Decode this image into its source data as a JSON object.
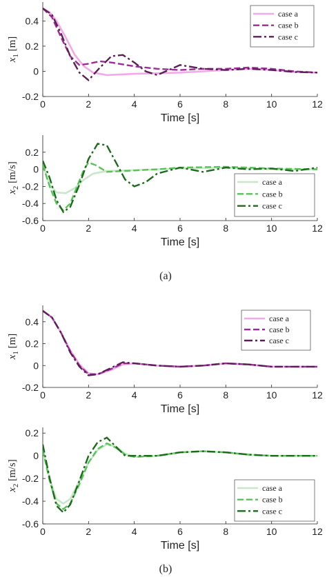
{
  "colors": {
    "x1_case_a": "#f2a9e8",
    "x1_case_b": "#9b2a9b",
    "x1_case_c": "#5a1f54",
    "x2_case_a": "#c9e6c9",
    "x2_case_b": "#55c455",
    "x2_case_c": "#1b6b1b"
  },
  "panels": {
    "a": {
      "caption": "(a)"
    },
    "b": {
      "caption": "(b)"
    }
  },
  "chart_data": [
    {
      "id": "a_x1",
      "type": "line",
      "title": "",
      "xlabel": "Time [s]",
      "ylabel": "x_1 [m]",
      "ylabel_main": "x",
      "ylabel_sub": "1",
      "ylabel_unit": " [m]",
      "xlim": [
        0,
        12
      ],
      "ylim": [
        -0.2,
        0.55
      ],
      "xticks": [
        "0",
        "2",
        "4",
        "6",
        "8",
        "10",
        "12"
      ],
      "xtick_values": [
        0,
        2,
        4,
        6,
        8,
        10,
        12
      ],
      "yticks": [
        "-0.2",
        "0",
        "0.2",
        "0.4"
      ],
      "ytick_values": [
        -0.2,
        0,
        0.2,
        0.4
      ],
      "grid": false,
      "legend": "top-right",
      "series": [
        {
          "name": "case a",
          "style": "solid",
          "color": "#f2a9e8",
          "points": [
            [
              0,
              0.5
            ],
            [
              0.3,
              0.47
            ],
            [
              0.6,
              0.4
            ],
            [
              1.0,
              0.27
            ],
            [
              1.4,
              0.13
            ],
            [
              1.8,
              0.04
            ],
            [
              2.2,
              -0.01
            ],
            [
              2.8,
              -0.03
            ],
            [
              4,
              -0.02
            ],
            [
              5,
              -0.015
            ],
            [
              6,
              -0.01
            ],
            [
              7,
              0
            ],
            [
              8,
              0.01
            ],
            [
              9,
              0.02
            ],
            [
              10,
              0.01
            ],
            [
              11,
              -0.005
            ],
            [
              12,
              -0.01
            ]
          ]
        },
        {
          "name": "case b",
          "style": "dash",
          "color": "#9b2a9b",
          "points": [
            [
              0,
              0.5
            ],
            [
              0.4,
              0.43
            ],
            [
              0.8,
              0.27
            ],
            [
              1.2,
              0.12
            ],
            [
              1.6,
              0.05
            ],
            [
              2.0,
              0.06
            ],
            [
              2.5,
              0.08
            ],
            [
              3.0,
              0.07
            ],
            [
              4,
              0.04
            ],
            [
              5,
              0.02
            ],
            [
              6,
              0.01
            ],
            [
              7,
              0.02
            ],
            [
              8,
              0.02
            ],
            [
              9,
              0.03
            ],
            [
              10,
              0.02
            ],
            [
              11,
              0
            ],
            [
              12,
              -0.01
            ]
          ]
        },
        {
          "name": "case c",
          "style": "dashdot",
          "color": "#5a1f54",
          "points": [
            [
              0,
              0.5
            ],
            [
              0.4,
              0.45
            ],
            [
              0.8,
              0.3
            ],
            [
              1.2,
              0.12
            ],
            [
              1.6,
              -0.01
            ],
            [
              2.0,
              -0.07
            ],
            [
              2.5,
              0.03
            ],
            [
              3.0,
              0.12
            ],
            [
              3.5,
              0.13
            ],
            [
              4.0,
              0.07
            ],
            [
              4.5,
              0.0
            ],
            [
              5.0,
              -0.03
            ],
            [
              6.0,
              0.05
            ],
            [
              7.0,
              0.02
            ],
            [
              8.0,
              0.01
            ],
            [
              9.0,
              0.02
            ],
            [
              10,
              0.01
            ],
            [
              11,
              -0.005
            ],
            [
              12,
              -0.01
            ]
          ]
        }
      ]
    },
    {
      "id": "a_x2",
      "type": "line",
      "title": "",
      "xlabel": "Time [s]",
      "ylabel": "x_2 [m/s]",
      "ylabel_main": "x",
      "ylabel_sub": "2",
      "ylabel_unit": " [m/s]",
      "xlim": [
        0,
        12
      ],
      "ylim": [
        -0.6,
        0.4
      ],
      "xticks": [
        "0",
        "2",
        "4",
        "6",
        "8",
        "10",
        "12"
      ],
      "xtick_values": [
        0,
        2,
        4,
        6,
        8,
        10,
        12
      ],
      "yticks": [
        "-0.6",
        "-0.4",
        "-0.2",
        "0",
        "0.2"
      ],
      "ytick_values": [
        -0.6,
        -0.4,
        -0.2,
        0,
        0.2
      ],
      "grid": false,
      "legend": "bottom-right",
      "series": [
        {
          "name": "case a",
          "style": "solid",
          "color": "#c9e6c9",
          "points": [
            [
              0,
              0.05
            ],
            [
              0.3,
              -0.18
            ],
            [
              0.6,
              -0.27
            ],
            [
              1.0,
              -0.28
            ],
            [
              1.4,
              -0.22
            ],
            [
              1.8,
              -0.12
            ],
            [
              2.2,
              -0.05
            ],
            [
              2.8,
              -0.02
            ],
            [
              4,
              -0.01
            ],
            [
              6,
              0.01
            ],
            [
              8,
              0.02
            ],
            [
              10,
              0
            ],
            [
              12,
              0
            ]
          ]
        },
        {
          "name": "case b",
          "style": "dash",
          "color": "#55c455",
          "points": [
            [
              0,
              0.05
            ],
            [
              0.3,
              -0.2
            ],
            [
              0.6,
              -0.4
            ],
            [
              0.9,
              -0.48
            ],
            [
              1.2,
              -0.4
            ],
            [
              1.5,
              -0.2
            ],
            [
              1.8,
              0
            ],
            [
              2.0,
              0.08
            ],
            [
              2.3,
              0.05
            ],
            [
              2.8,
              -0.03
            ],
            [
              3.5,
              -0.02
            ],
            [
              5,
              0
            ],
            [
              6,
              0.02
            ],
            [
              8,
              0.03
            ],
            [
              10,
              0.01
            ],
            [
              12,
              0
            ]
          ]
        },
        {
          "name": "case c",
          "style": "dashdot",
          "color": "#1b6b1b",
          "points": [
            [
              0,
              0.1
            ],
            [
              0.3,
              -0.1
            ],
            [
              0.6,
              -0.36
            ],
            [
              0.9,
              -0.5
            ],
            [
              1.2,
              -0.44
            ],
            [
              1.6,
              -0.18
            ],
            [
              2.0,
              0.12
            ],
            [
              2.4,
              0.3
            ],
            [
              2.8,
              0.28
            ],
            [
              3.2,
              0.08
            ],
            [
              3.6,
              -0.12
            ],
            [
              4.0,
              -0.2
            ],
            [
              4.5,
              -0.15
            ],
            [
              5.0,
              -0.05
            ],
            [
              6,
              0.02
            ],
            [
              7,
              -0.03
            ],
            [
              8,
              0.02
            ],
            [
              9,
              0
            ],
            [
              10,
              0.01
            ],
            [
              11,
              -0.02
            ],
            [
              12,
              0.02
            ]
          ]
        }
      ]
    },
    {
      "id": "b_x1",
      "type": "line",
      "title": "",
      "xlabel": "Time [s]",
      "ylabel": "x_1 [m]",
      "ylabel_main": "x",
      "ylabel_sub": "1",
      "ylabel_unit": " [m]",
      "xlim": [
        0,
        12
      ],
      "ylim": [
        -0.2,
        0.55
      ],
      "xticks": [
        "0",
        "2",
        "4",
        "6",
        "8",
        "10",
        "12"
      ],
      "xtick_values": [
        0,
        2,
        4,
        6,
        8,
        10,
        12
      ],
      "yticks": [
        "-0.2",
        "0",
        "0.2",
        "0.4"
      ],
      "ytick_values": [
        -0.2,
        0,
        0.2,
        0.4
      ],
      "grid": false,
      "legend": "top-right",
      "series": [
        {
          "name": "case a",
          "style": "solid",
          "color": "#f2a9e8",
          "points": [
            [
              0,
              0.5
            ],
            [
              0.4,
              0.44
            ],
            [
              0.8,
              0.3
            ],
            [
              1.2,
              0.14
            ],
            [
              1.6,
              0.01
            ],
            [
              2.0,
              -0.07
            ],
            [
              2.4,
              -0.08
            ],
            [
              3.0,
              -0.04
            ],
            [
              3.5,
              0.01
            ],
            [
              4,
              0.02
            ],
            [
              5,
              0
            ],
            [
              6,
              -0.01
            ],
            [
              7,
              0
            ],
            [
              8,
              0.02
            ],
            [
              9,
              0.01
            ],
            [
              10,
              -0.01
            ],
            [
              11,
              -0.01
            ],
            [
              12,
              -0.01
            ]
          ]
        },
        {
          "name": "case b",
          "style": "dash",
          "color": "#9b2a9b",
          "points": [
            [
              0,
              0.5
            ],
            [
              0.4,
              0.44
            ],
            [
              0.8,
              0.3
            ],
            [
              1.2,
              0.13
            ],
            [
              1.6,
              0.0
            ],
            [
              2.0,
              -0.08
            ],
            [
              2.4,
              -0.08
            ],
            [
              3.0,
              -0.03
            ],
            [
              3.5,
              0.02
            ],
            [
              4,
              0.02
            ],
            [
              5,
              0
            ],
            [
              6,
              -0.01
            ],
            [
              7,
              0
            ],
            [
              8,
              0.02
            ],
            [
              9,
              0.01
            ],
            [
              10,
              -0.01
            ],
            [
              11,
              -0.01
            ],
            [
              12,
              -0.01
            ]
          ]
        },
        {
          "name": "case c",
          "style": "dashdot",
          "color": "#5a1f54",
          "points": [
            [
              0,
              0.5
            ],
            [
              0.4,
              0.44
            ],
            [
              0.8,
              0.3
            ],
            [
              1.2,
              0.12
            ],
            [
              1.6,
              -0.01
            ],
            [
              2.0,
              -0.09
            ],
            [
              2.4,
              -0.08
            ],
            [
              3.0,
              -0.02
            ],
            [
              3.5,
              0.03
            ],
            [
              4,
              0.02
            ],
            [
              5,
              0
            ],
            [
              6,
              -0.01
            ],
            [
              7,
              0
            ],
            [
              8,
              0.02
            ],
            [
              9,
              0.01
            ],
            [
              10,
              -0.01
            ],
            [
              11,
              -0.01
            ],
            [
              12,
              -0.01
            ]
          ]
        }
      ]
    },
    {
      "id": "b_x2",
      "type": "line",
      "title": "",
      "xlabel": "Time [s]",
      "ylabel": "x_2 [m/s]",
      "ylabel_main": "x",
      "ylabel_sub": "2",
      "ylabel_unit": " [m/s]",
      "xlim": [
        0,
        12
      ],
      "ylim": [
        -0.6,
        0.25
      ],
      "xticks": [
        "0",
        "2",
        "4",
        "6",
        "8",
        "10",
        "12"
      ],
      "xtick_values": [
        0,
        2,
        4,
        6,
        8,
        10,
        12
      ],
      "yticks": [
        "-0.6",
        "-0.4",
        "-0.2",
        "0",
        "0.2"
      ],
      "ytick_values": [
        -0.6,
        -0.4,
        -0.2,
        0,
        0.2
      ],
      "grid": false,
      "legend": "bottom-right",
      "series": [
        {
          "name": "case a",
          "style": "solid",
          "color": "#c9e6c9",
          "points": [
            [
              0,
              0.05
            ],
            [
              0.3,
              -0.2
            ],
            [
              0.6,
              -0.38
            ],
            [
              0.9,
              -0.42
            ],
            [
              1.2,
              -0.38
            ],
            [
              1.6,
              -0.22
            ],
            [
              2.0,
              -0.06
            ],
            [
              2.4,
              0.05
            ],
            [
              2.8,
              0.1
            ],
            [
              3.2,
              0.08
            ],
            [
              3.6,
              0.02
            ],
            [
              4,
              -0.01
            ],
            [
              5,
              0
            ],
            [
              6,
              0.03
            ],
            [
              7,
              0.04
            ],
            [
              8,
              0.03
            ],
            [
              9,
              0.01
            ],
            [
              10,
              0
            ],
            [
              12,
              0
            ]
          ]
        },
        {
          "name": "case b",
          "style": "dash",
          "color": "#55c455",
          "points": [
            [
              0,
              0.05
            ],
            [
              0.3,
              -0.22
            ],
            [
              0.6,
              -0.42
            ],
            [
              0.9,
              -0.47
            ],
            [
              1.2,
              -0.42
            ],
            [
              1.6,
              -0.25
            ],
            [
              2.0,
              -0.06
            ],
            [
              2.4,
              0.06
            ],
            [
              2.8,
              0.11
            ],
            [
              3.2,
              0.07
            ],
            [
              3.6,
              0.01
            ],
            [
              4,
              -0.01
            ],
            [
              5,
              0
            ],
            [
              6,
              0.03
            ],
            [
              7,
              0.04
            ],
            [
              8,
              0.03
            ],
            [
              9,
              0.01
            ],
            [
              10,
              0
            ],
            [
              12,
              0
            ]
          ]
        },
        {
          "name": "case c",
          "style": "dashdot",
          "color": "#1b6b1b",
          "points": [
            [
              0,
              0.1
            ],
            [
              0.3,
              -0.2
            ],
            [
              0.6,
              -0.44
            ],
            [
              0.9,
              -0.5
            ],
            [
              1.2,
              -0.43
            ],
            [
              1.6,
              -0.22
            ],
            [
              2.0,
              0
            ],
            [
              2.4,
              0.12
            ],
            [
              2.8,
              0.16
            ],
            [
              3.2,
              0.08
            ],
            [
              3.6,
              0.0
            ],
            [
              4,
              0
            ],
            [
              5,
              0
            ],
            [
              6,
              0.03
            ],
            [
              7,
              0.04
            ],
            [
              8,
              0.03
            ],
            [
              9,
              0.01
            ],
            [
              10,
              0
            ],
            [
              12,
              0
            ]
          ]
        }
      ]
    }
  ]
}
